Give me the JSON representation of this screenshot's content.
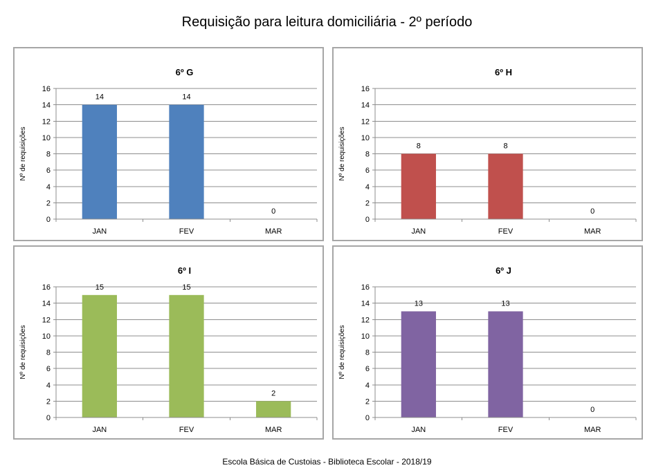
{
  "title": "Requisição para leitura domiciliária - 2º período",
  "footer": "Escola Básica de Custoias - Biblioteca Escolar  - 2018/19",
  "chart_data": [
    {
      "type": "bar",
      "title": "6º G",
      "categories": [
        "JAN",
        "FEV",
        "MAR"
      ],
      "values": [
        14,
        14,
        0
      ],
      "ylabel": "Nº de requisições",
      "xlabel": "",
      "ylim": [
        0,
        16
      ],
      "yticks": [
        0,
        2,
        4,
        6,
        8,
        10,
        12,
        14,
        16
      ],
      "grid": true,
      "color": "#4f81bd"
    },
    {
      "type": "bar",
      "title": "6º H",
      "categories": [
        "JAN",
        "FEV",
        "MAR"
      ],
      "values": [
        8,
        8,
        0
      ],
      "ylabel": "Nº de requisições",
      "xlabel": "",
      "ylim": [
        0,
        16
      ],
      "yticks": [
        0,
        2,
        4,
        6,
        8,
        10,
        12,
        14,
        16
      ],
      "grid": true,
      "color": "#c0504d"
    },
    {
      "type": "bar",
      "title": "6º I",
      "categories": [
        "JAN",
        "FEV",
        "MAR"
      ],
      "values": [
        15,
        15,
        2
      ],
      "ylabel": "Nº de requisições",
      "xlabel": "",
      "ylim": [
        0,
        16
      ],
      "yticks": [
        0,
        2,
        4,
        6,
        8,
        10,
        12,
        14,
        16
      ],
      "grid": true,
      "color": "#9bbb59"
    },
    {
      "type": "bar",
      "title": "6º J",
      "categories": [
        "JAN",
        "FEV",
        "MAR"
      ],
      "values": [
        13,
        13,
        0
      ],
      "ylabel": "Nº de requisições",
      "xlabel": "",
      "ylim": [
        0,
        16
      ],
      "yticks": [
        0,
        2,
        4,
        6,
        8,
        10,
        12,
        14,
        16
      ],
      "grid": true,
      "color": "#8064a2"
    }
  ]
}
